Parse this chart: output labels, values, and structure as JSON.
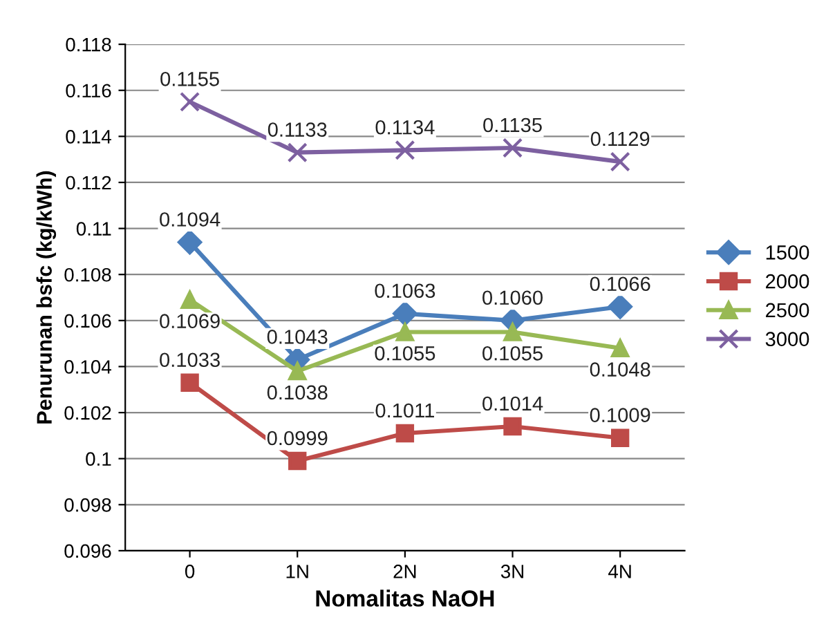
{
  "chart_data": {
    "type": "line",
    "xlabel": "Nomalitas NaOH",
    "ylabel": "Penurunan bsfc (kg/kWh)",
    "categories": [
      "0",
      "1N",
      "2N",
      "3N",
      "4N"
    ],
    "series": [
      {
        "name": "1500",
        "color": "#4a7ebb",
        "marker": "diamond",
        "values": [
          0.1094,
          0.1043,
          0.1063,
          0.106,
          0.1066
        ],
        "value_labels": [
          "0.1094",
          "0.1043",
          "0.1063",
          "0.1060",
          "0.1066"
        ]
      },
      {
        "name": "2000",
        "color": "#be4b48",
        "marker": "square",
        "values": [
          0.1033,
          0.0999,
          0.1011,
          0.1014,
          0.1009
        ],
        "value_labels": [
          "0.1033",
          "0.0999",
          "0.1011",
          "0.1014",
          "0.1009"
        ]
      },
      {
        "name": "2500",
        "color": "#98b954",
        "marker": "triangle",
        "values": [
          0.1069,
          0.1038,
          0.1055,
          0.1055,
          0.1048
        ],
        "value_labels": [
          "0.1069",
          "0.1038",
          "0.1055",
          "0.1055",
          "0.1048"
        ]
      },
      {
        "name": "3000",
        "color": "#7d60a0",
        "marker": "cross",
        "values": [
          0.1155,
          0.1133,
          0.1134,
          0.1135,
          0.1129
        ],
        "value_labels": [
          "0.1155",
          "0.1133",
          "0.1134",
          "0.1135",
          "0.1129"
        ]
      }
    ],
    "ylim": [
      0.096,
      0.118
    ],
    "yticks": [
      0.096,
      0.098,
      {
        "value": 0.1,
        "label": "0.1"
      },
      0.102,
      0.104,
      0.106,
      0.108,
      {
        "value": 0.11,
        "label": "0.11"
      },
      0.112,
      0.114,
      0.116,
      0.118
    ],
    "grid": "y",
    "legend": "right",
    "line_style": "solid"
  }
}
